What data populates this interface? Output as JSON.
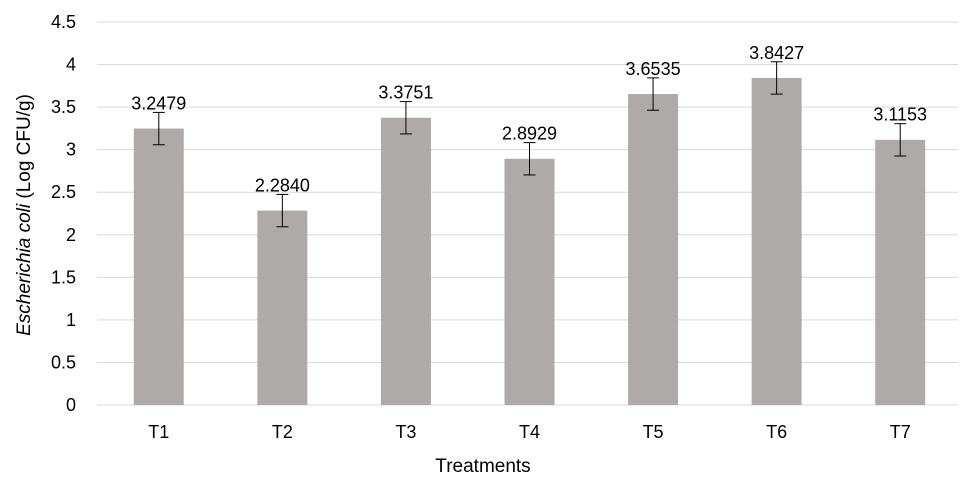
{
  "chart_data": {
    "type": "bar",
    "categories": [
      "T1",
      "T2",
      "T3",
      "T4",
      "T5",
      "T6",
      "T7"
    ],
    "values": [
      3.2479,
      2.284,
      3.3751,
      2.8929,
      3.6535,
      3.8427,
      3.1153
    ],
    "value_labels": [
      "3.2479",
      "2.2840",
      "3.3751",
      "2.8929",
      "3.6535",
      "3.8427",
      "3.1153"
    ],
    "error": [
      0.19,
      0.19,
      0.19,
      0.19,
      0.19,
      0.19,
      0.19
    ],
    "xlabel": "Treatments",
    "ylabel_italic": "Escherichia coli",
    "ylabel_rest": " (Log CFU/g)",
    "ylim": [
      0,
      4.5
    ],
    "yticks": [
      0,
      0.5,
      1,
      1.5,
      2,
      2.5,
      3,
      3.5,
      4,
      4.5
    ],
    "ytick_labels": [
      "0",
      "0.5",
      "1",
      "1.5",
      "2",
      "2.5",
      "3",
      "3.5",
      "4",
      "4.5"
    ],
    "grid": true,
    "bar_color": "#aeaaaa",
    "grid_color": "#d9d9d9"
  }
}
